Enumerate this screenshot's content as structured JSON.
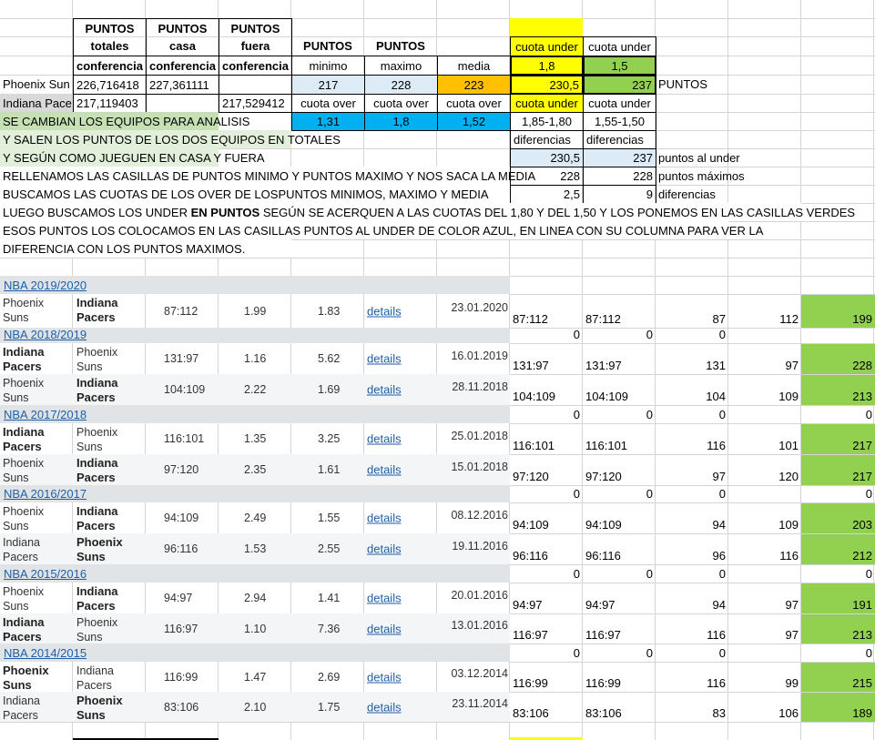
{
  "header": {
    "puntos": "PUNTOS",
    "totales": "totales",
    "casa": "casa",
    "fuera": "fuera",
    "conferencia": "conferencia",
    "minimo": "minimo",
    "maximo": "maximo",
    "media": "media",
    "cuota_under": "cuota under",
    "cuota_over": "cuota over"
  },
  "teams": {
    "phoenix_label": "Phoenix Sun",
    "indiana_label": "Indiana Pace",
    "phoenix_totales": "226,716418",
    "phoenix_casa": "227,361111",
    "indiana_totales": "217,119403",
    "indiana_fuera": "217,529412"
  },
  "values": {
    "min": "217",
    "max": "228",
    "media": "223",
    "under_18": "1,8",
    "under_15": "1,5",
    "under_pts_18": "230,5",
    "under_pts_15": "237",
    "puntos": "PUNTOS",
    "over_min": "1,31",
    "over_max": "1,8",
    "over_media": "1,52",
    "range_18": "1,85-1,80",
    "range_15": "1,55-1,50",
    "diferencias": "diferencias",
    "al_under_18": "230,5",
    "al_under_15": "237",
    "al_under_label": "puntos al under",
    "max_18": "228",
    "max_15": "228",
    "max_label": "puntos máximos",
    "dif_18": "2,5",
    "dif_15": "9",
    "dif_label": "diferencias"
  },
  "notes": {
    "n1": "SE CAMBIAN LOS EQUIPOS PARA ANALISIS",
    "n2": "Y SALEN LOS PUNTOS DE LOS DOS EQUIPOS EN TOTALES",
    "n3": "Y SEGÚN COMO JUEGUEN EN CASA Y FUERA",
    "n4": "RELLENAMOS LAS CASILLAS DE PUNTOS MINIMO Y PUNTOS MAXIMO Y NOS SACA LA MEDIA",
    "n5": "BUSCAMOS LAS CUOTAS DE LOS OVER DE LOSPUNTOS MINIMOS, MAXIMO  Y MEDIA",
    "n6a": "LUEGO BUSCAMOS LOS UNDER ",
    "n6b": "EN PUNTOS",
    "n6c": " SEGÚN SE ACERQUEN A LAS CUOTAS DEL 1,80 Y DEL 1,50 Y LOS PONEMOS EN LAS CASILLAS VERDES",
    "n7": "ESOS PUNTOS LOS COLOCAMOS EN LAS CASILLAS PUNTOS AL UNDER DE COLOR AZUL, EN LINEA CON SU COLUMNA PARA VER LA",
    "n8": "DIFERENCIA CON LOS PUNTOS MAXIMOS."
  },
  "details_label": "details",
  "seasons": [
    {
      "name": "NBA 2019/2020",
      "zeros": [
        "",
        "",
        "",
        "",
        ""
      ],
      "matches": [
        {
          "t1": "Phoenix Suns",
          "t2": "Indiana Pacers",
          "bold": 2,
          "score": "87:112",
          "o1": "1.99",
          "o2": "1.83",
          "date": "23.01.2020",
          "s1": "87:112",
          "s2": "87:112",
          "h": "87",
          "a": "112",
          "tot": "199"
        }
      ]
    },
    {
      "name": "NBA 2018/2019",
      "zeros": [
        "0",
        "0",
        "0",
        "",
        ""
      ],
      "matches": [
        {
          "t1": "Indiana Pacers",
          "t2": "Phoenix Suns",
          "bold": 1,
          "score": "131:97",
          "o1": "1.16",
          "o2": "5.62",
          "date": "16.01.2019",
          "s1": "131:97",
          "s2": "131:97",
          "h": "131",
          "a": "97",
          "tot": "228"
        },
        {
          "t1": "Phoenix Suns",
          "t2": "Indiana Pacers",
          "bold": 2,
          "score": "104:109",
          "o1": "2.22",
          "o2": "1.69",
          "date": "28.11.2018",
          "s1": "104:109",
          "s2": "104:109",
          "h": "104",
          "a": "109",
          "tot": "213"
        }
      ]
    },
    {
      "name": "NBA 2017/2018",
      "zeros": [
        "0",
        "0",
        "0",
        "",
        "0"
      ],
      "matches": [
        {
          "t1": "Indiana Pacers",
          "t2": "Phoenix Suns",
          "bold": 1,
          "score": "116:101",
          "o1": "1.35",
          "o2": "3.25",
          "date": "25.01.2018",
          "s1": "116:101",
          "s2": "116:101",
          "h": "116",
          "a": "101",
          "tot": "217"
        },
        {
          "t1": "Phoenix Suns",
          "t2": "Indiana Pacers",
          "bold": 2,
          "score": "97:120",
          "o1": "2.35",
          "o2": "1.61",
          "date": "15.01.2018",
          "s1": "97:120",
          "s2": "97:120",
          "h": "97",
          "a": "120",
          "tot": "217"
        }
      ]
    },
    {
      "name": "NBA 2016/2017",
      "zeros": [
        "0",
        "0",
        "0",
        "",
        "0"
      ],
      "matches": [
        {
          "t1": "Phoenix Suns",
          "t2": "Indiana Pacers",
          "bold": 2,
          "score": "94:109",
          "o1": "2.49",
          "o2": "1.55",
          "date": "08.12.2016",
          "s1": "94:109",
          "s2": "94:109",
          "h": "94",
          "a": "109",
          "tot": "203"
        },
        {
          "t1": "Indiana Pacers",
          "t2": "Phoenix Suns",
          "bold": 2,
          "score": "96:116",
          "o1": "1.53",
          "o2": "2.55",
          "date": "19.11.2016",
          "s1": "96:116",
          "s2": "96:116",
          "h": "96",
          "a": "116",
          "tot": "212"
        }
      ]
    },
    {
      "name": "NBA 2015/2016",
      "zeros": [
        "0",
        "0",
        "0",
        "",
        "0"
      ],
      "matches": [
        {
          "t1": "Phoenix Suns",
          "t2": "Indiana Pacers",
          "bold": 2,
          "score": "94:97",
          "o1": "2.94",
          "o2": "1.41",
          "date": "20.01.2016",
          "s1": "94:97",
          "s2": "94:97",
          "h": "94",
          "a": "97",
          "tot": "191"
        },
        {
          "t1": "Indiana Pacers",
          "t2": "Phoenix Suns",
          "bold": 1,
          "score": "116:97",
          "o1": "1.10",
          "o2": "7.36",
          "date": "13.01.2016",
          "s1": "116:97",
          "s2": "116:97",
          "h": "116",
          "a": "97",
          "tot": "213"
        }
      ]
    },
    {
      "name": "NBA 2014/2015",
      "zeros": [
        "0",
        "0",
        "0",
        "",
        "0"
      ],
      "matches": [
        {
          "t1": "Phoenix Suns",
          "t2": "Indiana Pacers",
          "bold": 1,
          "score": "116:99",
          "o1": "1.47",
          "o2": "2.69",
          "date": "03.12.2014",
          "s1": "116:99",
          "s2": "116:99",
          "h": "116",
          "a": "99",
          "tot": "215"
        },
        {
          "t1": "Indiana Pacers",
          "t2": "Phoenix Suns",
          "bold": 2,
          "score": "83:106",
          "o1": "2.10",
          "o2": "1.75",
          "date": "23.11.2014",
          "s1": "83:106",
          "s2": "83:106",
          "h": "83",
          "a": "106",
          "tot": "189"
        }
      ]
    }
  ],
  "colors": {
    "yellow": "#ffff00",
    "green": "#92d050",
    "light_blue": "#ddebf7",
    "orange": "#ffc000",
    "cyan": "#00b0f0",
    "link": "#1f5fa8"
  }
}
